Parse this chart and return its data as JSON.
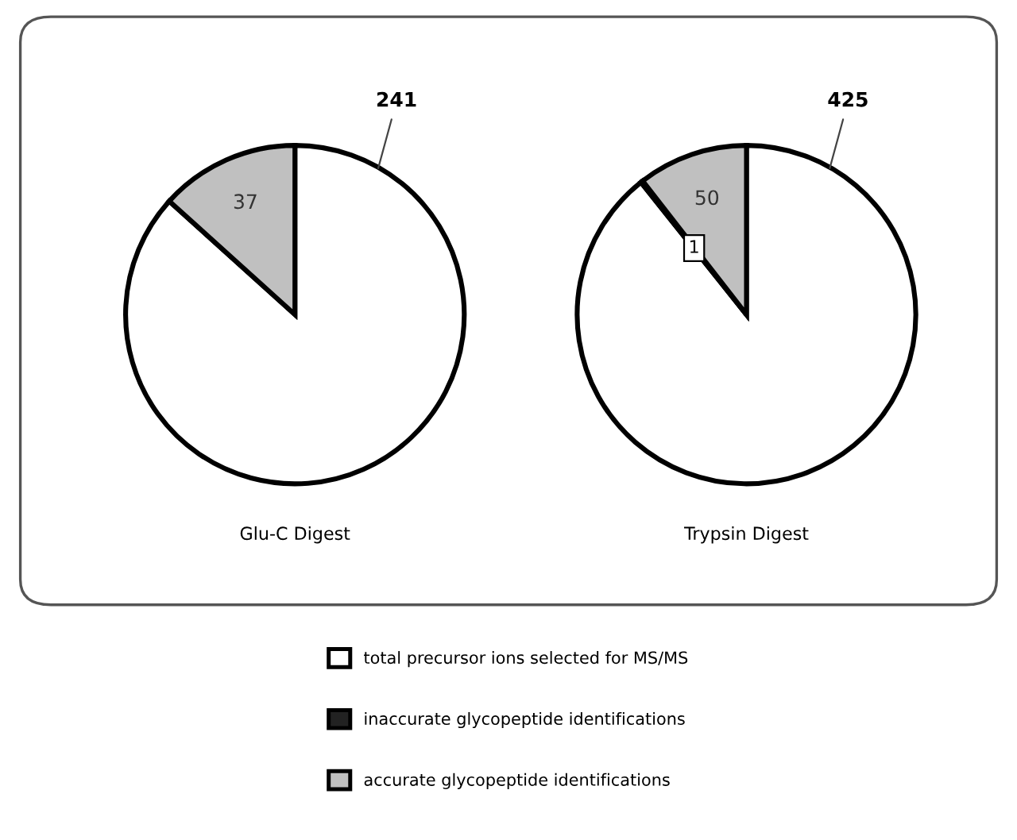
{
  "chart_data": [
    {
      "type": "pie",
      "title": "Glu-C Digest",
      "categories": [
        "total precursor ions selected for MS/MS",
        "inaccurate glycopeptide identifications",
        "accurate glycopeptide identifications"
      ],
      "values": [
        241,
        null,
        37
      ],
      "colors": [
        "#ffffff",
        "#222222",
        "#c0c0c0"
      ],
      "data_labels": true,
      "legend": "bottom"
    },
    {
      "type": "pie",
      "title": "Trypsin Digest",
      "categories": [
        null,
        null,
        null
      ],
      "values": [
        425,
        1,
        50
      ],
      "colors": [
        "#ffffff",
        "#222222",
        "#c0c0c0"
      ],
      "data_labels": true
    }
  ]
}
